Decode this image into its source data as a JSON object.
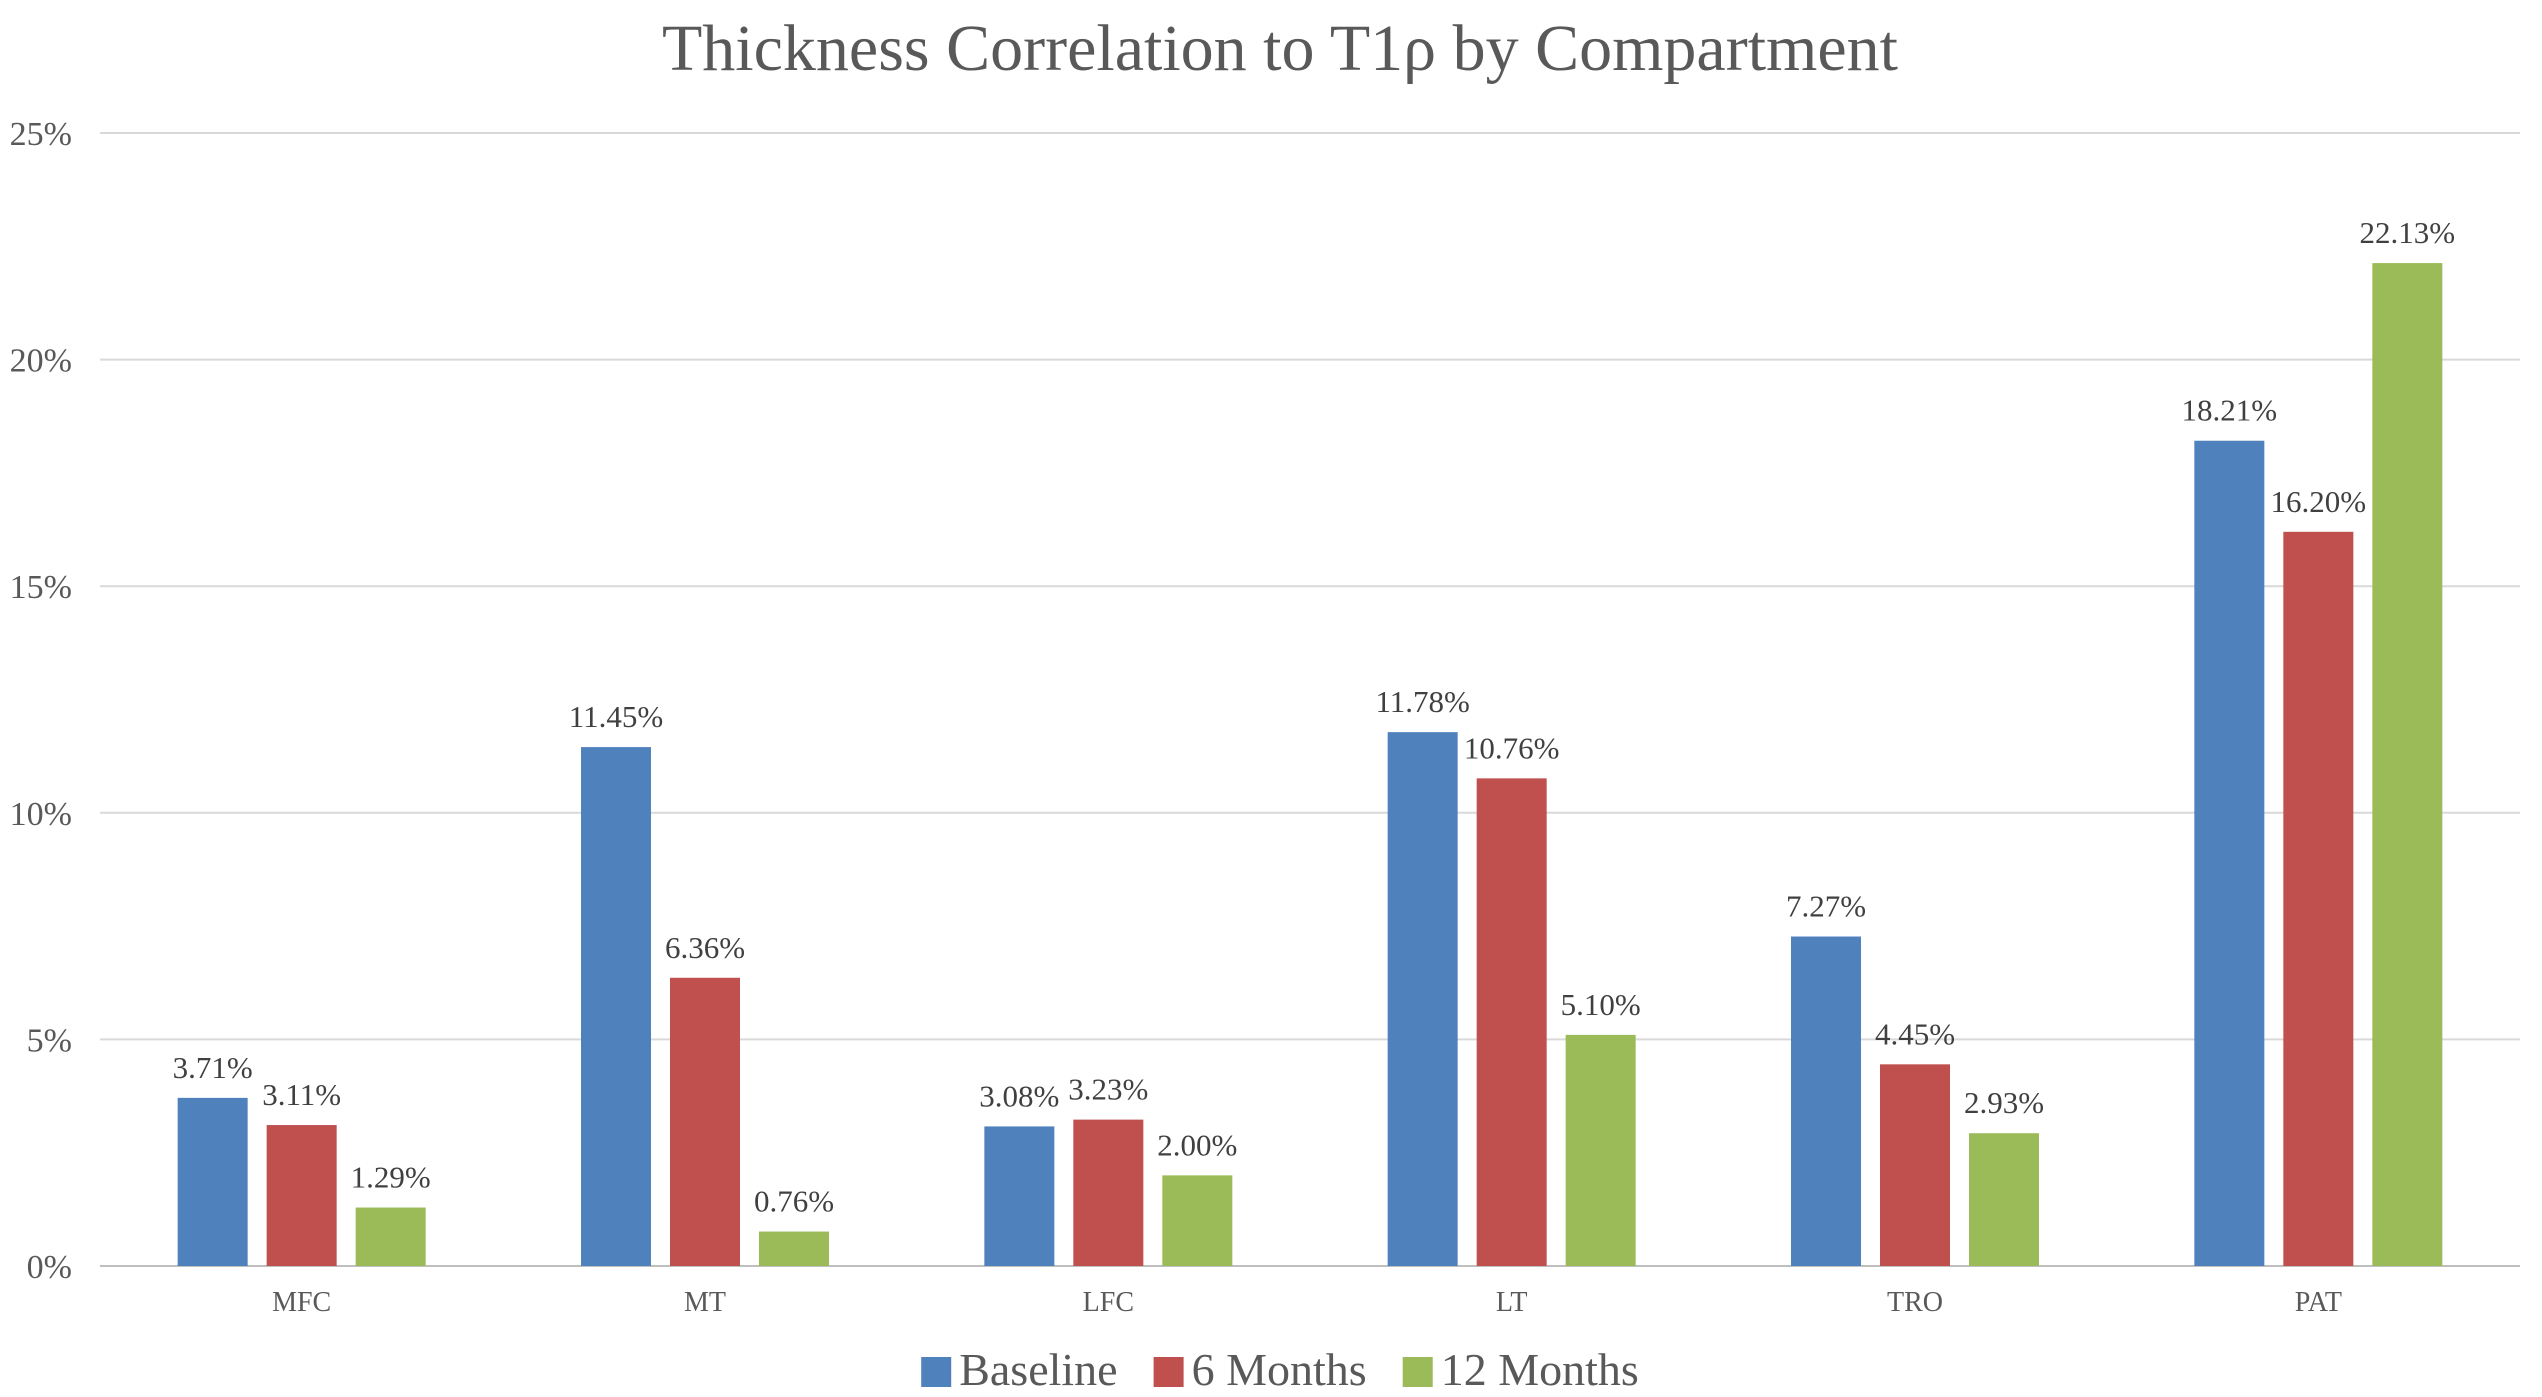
{
  "chart_data": {
    "type": "bar",
    "title": "Thickness Correlation to T1ρ by Compartment",
    "xlabel": "",
    "ylabel": "",
    "categories": [
      "MFC",
      "MT",
      "LFC",
      "LT",
      "TRO",
      "PAT"
    ],
    "series": [
      {
        "name": "Baseline",
        "color": "#4F81BD",
        "values": [
          3.71,
          11.45,
          3.08,
          11.78,
          7.27,
          18.21
        ],
        "labels": [
          "3.71%",
          "11.45%",
          "3.08%",
          "11.78%",
          "7.27%",
          "18.21%"
        ]
      },
      {
        "name": "6 Months",
        "color": "#C0504D",
        "values": [
          3.11,
          6.36,
          3.23,
          10.76,
          4.45,
          16.2
        ],
        "labels": [
          "3.11%",
          "6.36%",
          "3.23%",
          "10.76%",
          "4.45%",
          "16.20%"
        ]
      },
      {
        "name": "12 Months",
        "color": "#9BBB59",
        "values": [
          1.29,
          0.76,
          2.0,
          5.1,
          2.93,
          22.13
        ],
        "labels": [
          "1.29%",
          "0.76%",
          "2.00%",
          "5.10%",
          "2.93%",
          "22.13%"
        ]
      }
    ],
    "ylim": [
      0,
      25
    ],
    "yticks": [
      0,
      5,
      10,
      15,
      20,
      25
    ],
    "ytick_labels": [
      "0%",
      "5%",
      "10%",
      "15%",
      "20%",
      "25%"
    ],
    "grid": true,
    "legend": "bottom-center"
  }
}
